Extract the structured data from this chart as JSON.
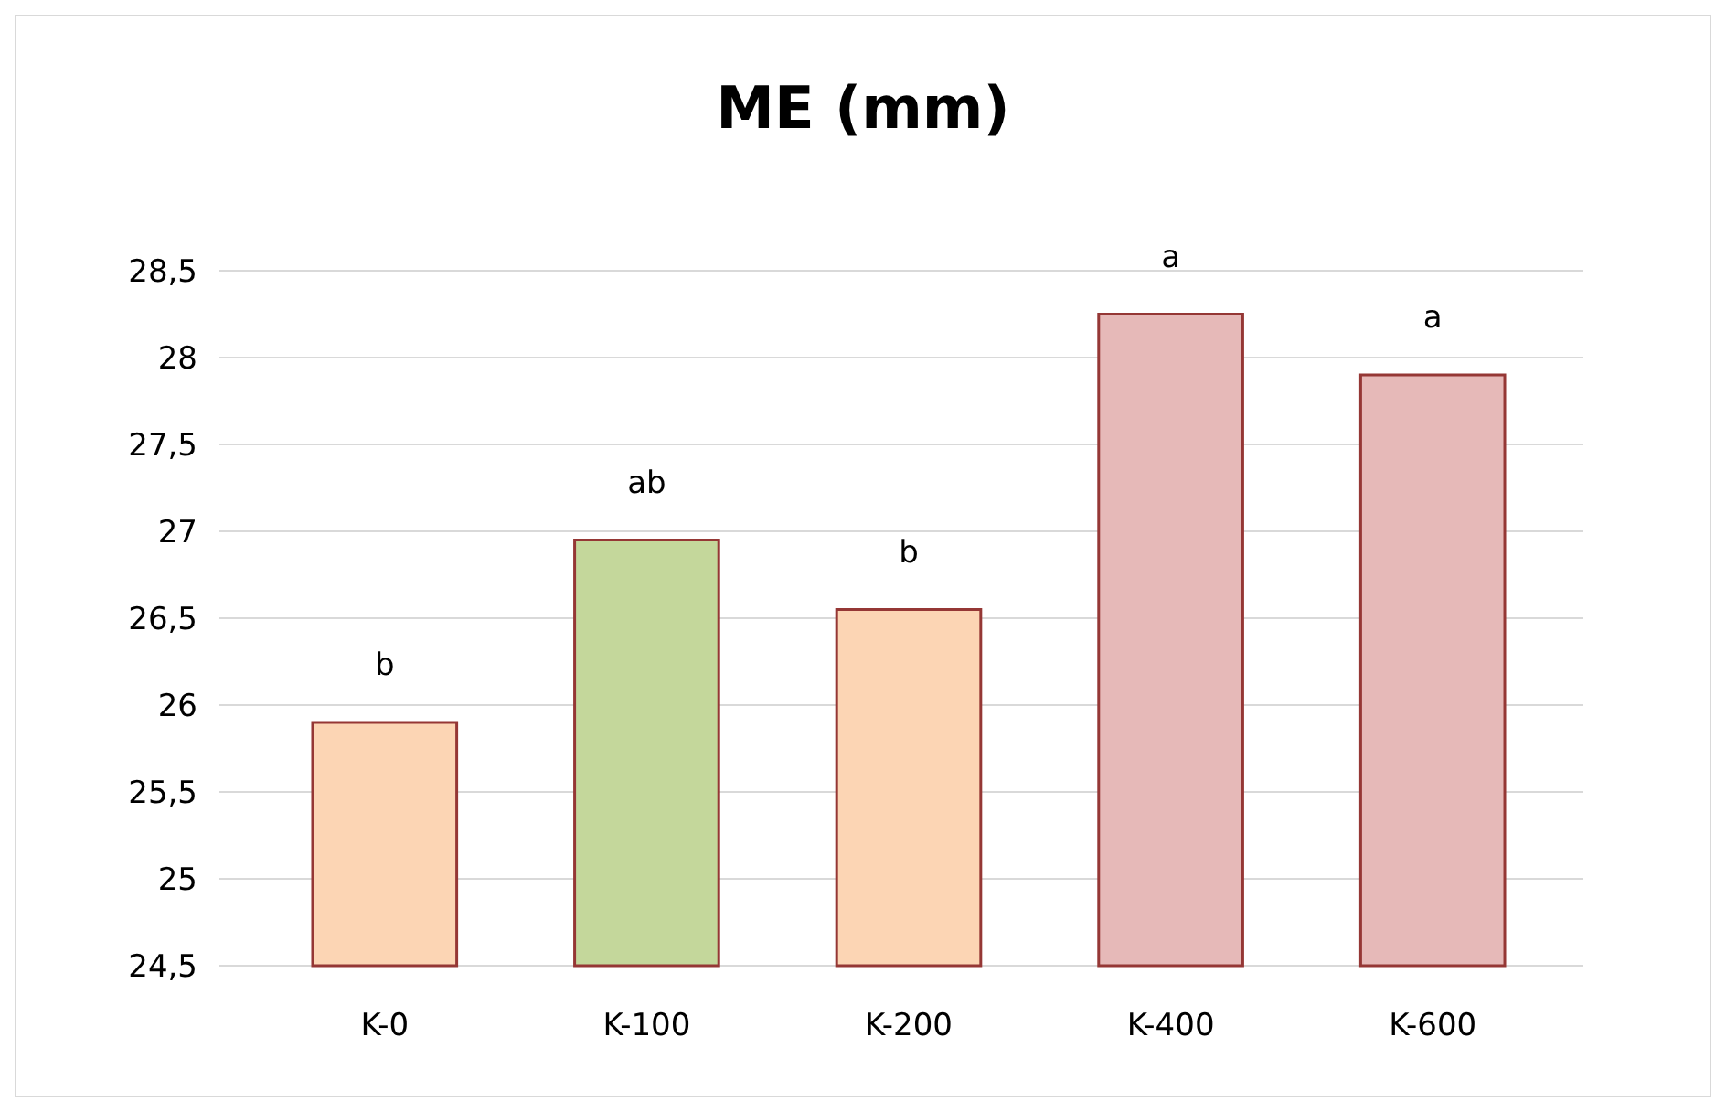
{
  "chart_data": {
    "type": "bar",
    "title": "ME (mm)",
    "categories": [
      "K-0",
      "K-100",
      "K-200",
      "K-400",
      "K-600"
    ],
    "values": [
      25.9,
      26.95,
      26.55,
      28.25,
      27.9
    ],
    "colors": [
      "#fcd5b4",
      "#c4d79b",
      "#fcd5b4",
      "#e6b9b8",
      "#e6b9b8"
    ],
    "ylim": [
      24.5,
      28.5
    ],
    "yticks": [
      {
        "value": 24.5,
        "label": "24,5"
      },
      25,
      {
        "value": 25.5,
        "label": "25,5"
      },
      26,
      {
        "value": 26.5,
        "label": "26,5"
      },
      27,
      {
        "value": 27.5,
        "label": "27,5"
      },
      28,
      {
        "value": 28.5,
        "label": "28,5"
      }
    ],
    "grid": "y",
    "annotations": [
      {
        "text": "b",
        "x": "K-0",
        "y": 25.9
      },
      {
        "text": "ab",
        "x": "K-100",
        "y": 26.95
      },
      {
        "text": "b",
        "x": "K-200",
        "y": 26.55
      },
      {
        "text": "a",
        "x": "K-400",
        "y": 28.25
      },
      {
        "text": "a",
        "x": "K-600",
        "y": 27.9
      }
    ]
  }
}
